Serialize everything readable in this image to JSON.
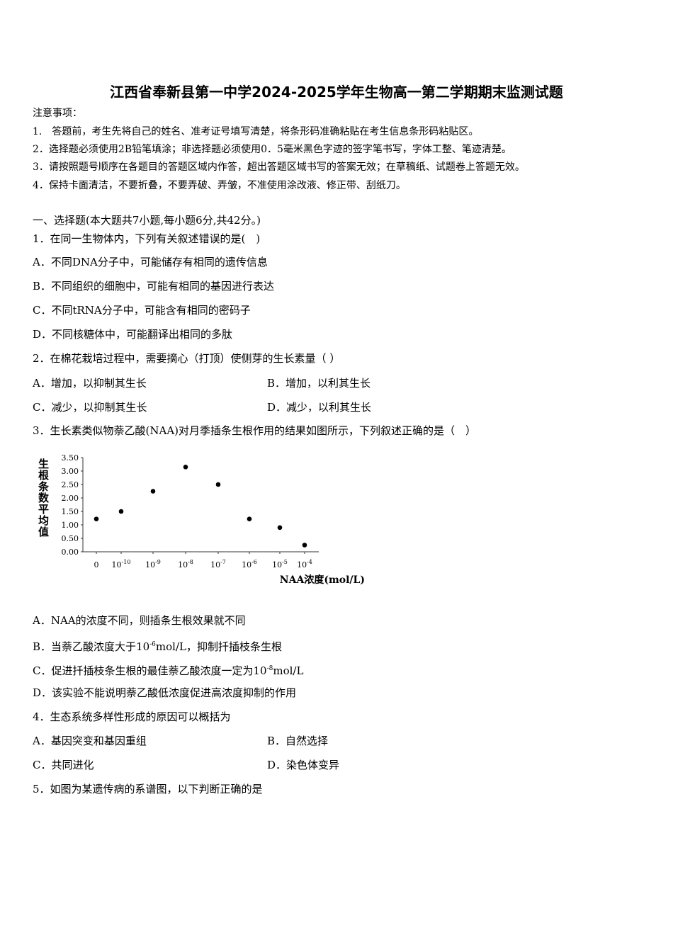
{
  "title": "江西省奉新县第一中学2024-2025学年生物高一第二学期期末监测试题",
  "notes": {
    "heading": "注意事项：",
    "items": [
      "1.　答题前，考生先将自己的姓名、准考证号填写清楚，将条形码准确粘贴在考生信息条形码粘贴区。",
      "2．选择题必须使用2B铅笔填涂；非选择题必须使用0．5毫米黑色字迹的签字笔书写，字体工整、笔迹清楚。",
      "3．请按照题号顺序在各题目的答题区域内作答，超出答题区域书写的答案无效；在草稿纸、试题卷上答题无效。",
      "4．保持卡面清洁，不要折叠，不要弄破、弄皱，不准使用涂改液、修正带、刮纸刀。"
    ]
  },
  "section": "一、选择题(本大题共7小题,每小题6分,共42分。)",
  "q1": {
    "stem": "1．在同一生物体内，下列有关叙述错误的是(　)",
    "options": [
      "A．不同DNA分子中，可能储存有相同的遗传信息",
      "B．不同组织的细胞中，可能有相同的基因进行表达",
      "C．不同tRNA分子中，可能含有相同的密码子",
      "D．不同核糖体中，可能翻译出相同的多肽"
    ]
  },
  "q2": {
    "stem": "2．在棉花栽培过程中，需要摘心（打顶）使侧芽的生长素量（ ）",
    "options": [
      "A．增加，以抑制其生长",
      "B．增加，以利其生长",
      "C．减少，以抑制其生长",
      "D．减少，以利其生长"
    ]
  },
  "q3": {
    "stem": "3．生长素类似物萘乙酸(NAA)对月季插条生根作用的结果如图所示，下列叙述正确的是（　）",
    "options": {
      "A": "A．NAA的浓度不同，则插条生根效果就不同",
      "B_pre": "B．当萘乙酸浓度大于10",
      "B_sup": "-6",
      "B_post": "mol/L，抑制扦插枝条生根",
      "C_pre": "C．促进扦插枝条生根的最佳萘乙酸浓度一定为10",
      "C_sup": "-8",
      "C_post": "mol/L",
      "D": "D．该实验不能说明萘乙酸低浓度促进高浓度抑制的作用"
    }
  },
  "q4": {
    "stem": "4．生态系统多样性形成的原因可以概括为",
    "options": [
      "A．基因突变和基因重组",
      "B．自然选择",
      "C．共同进化",
      "D．染色体变异"
    ]
  },
  "q5": {
    "stem": "5．如图为某遗传病的系谱图，以下判断正确的是"
  },
  "chart_data": {
    "type": "scatter",
    "xlabel": "NAA浓度(mol/L)",
    "ylabel": "生根条数平均值",
    "categories": [
      "0",
      "10^-10",
      "10^-9",
      "10^-8",
      "10^-7",
      "10^-6",
      "10^-5",
      "10^-4"
    ],
    "category_labels": [
      {
        "base": "0",
        "exp": ""
      },
      {
        "base": "10",
        "exp": "-10"
      },
      {
        "base": "10",
        "exp": "-9"
      },
      {
        "base": "10",
        "exp": "-8"
      },
      {
        "base": "10",
        "exp": "-7"
      },
      {
        "base": "10",
        "exp": "-6"
      },
      {
        "base": "10",
        "exp": "-5"
      },
      {
        "base": "10",
        "exp": "-4"
      }
    ],
    "values": [
      1.22,
      1.5,
      2.25,
      3.15,
      2.5,
      1.22,
      0.9,
      0.25
    ],
    "yticks": [
      "0.00",
      "0.50",
      "1.00",
      "1.50",
      "2.00",
      "2.50",
      "3.00",
      "3.50"
    ],
    "ylim": [
      0,
      3.5
    ],
    "grid": false
  }
}
